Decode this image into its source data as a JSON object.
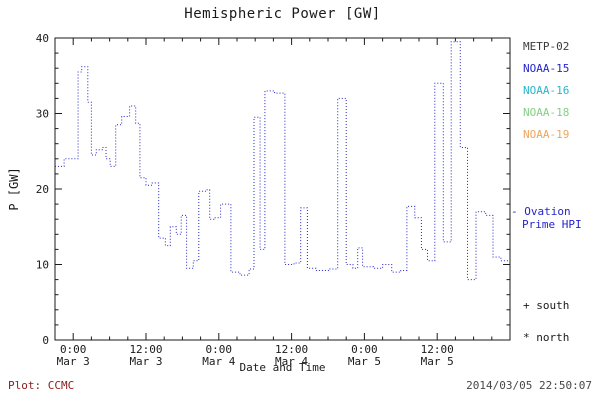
{
  "annotations": {
    "ovation": {
      "line1": "- Ovation",
      "line2": "Prime HPI",
      "color": "#2424cc"
    },
    "south_marker": "+ south",
    "north_marker": "* north",
    "credit": "Plot: CCMC",
    "credit_color": "#8b1a1a",
    "timestamp": "2014/03/05 22:50:07"
  },
  "legend": {
    "items": [
      {
        "label": "METP-02",
        "color": "#3a3a3a"
      },
      {
        "label": "NOAA-15",
        "color": "#2424cc"
      },
      {
        "label": "NOAA-16",
        "color": "#29b7cb"
      },
      {
        "label": "NOAA-18",
        "color": "#85cf85"
      },
      {
        "label": "NOAA-19",
        "color": "#eda55e"
      }
    ]
  },
  "chart_data": {
    "type": "line",
    "style": "step-dotted",
    "title": "Hemispheric Power [GW]",
    "xlabel": "Date and Time",
    "ylabel": "P [GW]",
    "xlim": [
      -3,
      72
    ],
    "ylim": [
      0,
      40
    ],
    "grid": false,
    "frame_color": "#1a1a1a",
    "line_color": "#2424cc",
    "y_ticks": [
      0,
      10,
      20,
      30,
      40
    ],
    "y_minor_step": 2,
    "x_minor_step": 3,
    "x_ticks": [
      {
        "hour": 0,
        "time": "0:00",
        "date": "Mar 3"
      },
      {
        "hour": 12,
        "time": "12:00",
        "date": "Mar 3"
      },
      {
        "hour": 24,
        "time": "0:00",
        "date": "Mar 4"
      },
      {
        "hour": 36,
        "time": "12:00",
        "date": "Mar 4"
      },
      {
        "hour": 48,
        "time": "0:00",
        "date": "Mar 5"
      },
      {
        "hour": 60,
        "time": "12:00",
        "date": "Mar 5"
      }
    ],
    "steps": [
      [
        -3,
        23
      ],
      [
        -1.5,
        24
      ],
      [
        0.8,
        35.5
      ],
      [
        1.4,
        36.2
      ],
      [
        2.4,
        31.5
      ],
      [
        3,
        24.5
      ],
      [
        3.8,
        25.2
      ],
      [
        4.8,
        25.5
      ],
      [
        5.4,
        24
      ],
      [
        6.1,
        23
      ],
      [
        7,
        28.5
      ],
      [
        8,
        29.6
      ],
      [
        9.3,
        31
      ],
      [
        10.3,
        28.7
      ],
      [
        11,
        21.5
      ],
      [
        12,
        20.5
      ],
      [
        13,
        20.8
      ],
      [
        14.1,
        13.5
      ],
      [
        15.2,
        12.5
      ],
      [
        16,
        15
      ],
      [
        17,
        14
      ],
      [
        17.8,
        16.5
      ],
      [
        18.7,
        9.5
      ],
      [
        19.8,
        10.5
      ],
      [
        20.7,
        19.7
      ],
      [
        21.8,
        19.9
      ],
      [
        22.5,
        16
      ],
      [
        23.2,
        16.2
      ],
      [
        24.3,
        18
      ],
      [
        26,
        9
      ],
      [
        27.5,
        8.6
      ],
      [
        29,
        9.4
      ],
      [
        29.8,
        29.5
      ],
      [
        30.8,
        12
      ],
      [
        31.6,
        33
      ],
      [
        33.2,
        32.7
      ],
      [
        34.9,
        10
      ],
      [
        36.4,
        10.2
      ],
      [
        37.5,
        17.5
      ],
      [
        38.6,
        9.5
      ],
      [
        40,
        9.2
      ],
      [
        42.3,
        9.4
      ],
      [
        43.6,
        32
      ],
      [
        45,
        10
      ],
      [
        46.1,
        9.5
      ],
      [
        46.9,
        12.2
      ],
      [
        47.7,
        9.7
      ],
      [
        49.5,
        9.5
      ],
      [
        51,
        10
      ],
      [
        52.5,
        9
      ],
      [
        54,
        9.2
      ],
      [
        55,
        17.7
      ],
      [
        56.3,
        16.2
      ],
      [
        57.4,
        12
      ],
      [
        58.4,
        10.5
      ],
      [
        59.6,
        34
      ],
      [
        61,
        13
      ],
      [
        62.3,
        39.5
      ],
      [
        63.8,
        25.5
      ],
      [
        65,
        8
      ],
      [
        66.4,
        17
      ],
      [
        68,
        16.5
      ],
      [
        69.2,
        11
      ],
      [
        70.5,
        10.5
      ]
    ]
  }
}
